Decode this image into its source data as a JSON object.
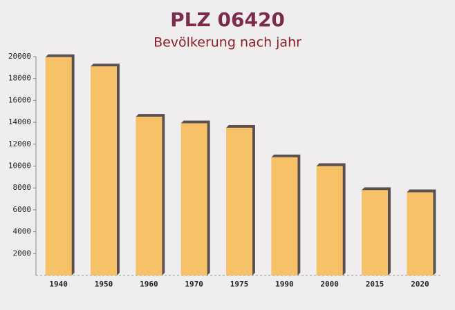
{
  "chart_data": {
    "type": "bar",
    "title": "PLZ 06420",
    "subtitle": "Bevölkerung nach jahr",
    "categories": [
      "1940",
      "1950",
      "1960",
      "1970",
      "1975",
      "1990",
      "2000",
      "2015",
      "2020"
    ],
    "values": [
      19950,
      19100,
      14500,
      13900,
      13500,
      10800,
      10000,
      7800,
      7600
    ],
    "color": "#f7bf60",
    "ylim": [
      0,
      20000
    ],
    "yticks": [
      2000,
      4000,
      6000,
      8000,
      10000,
      12000,
      14000,
      16000,
      18000,
      20000
    ],
    "grid": false
  }
}
